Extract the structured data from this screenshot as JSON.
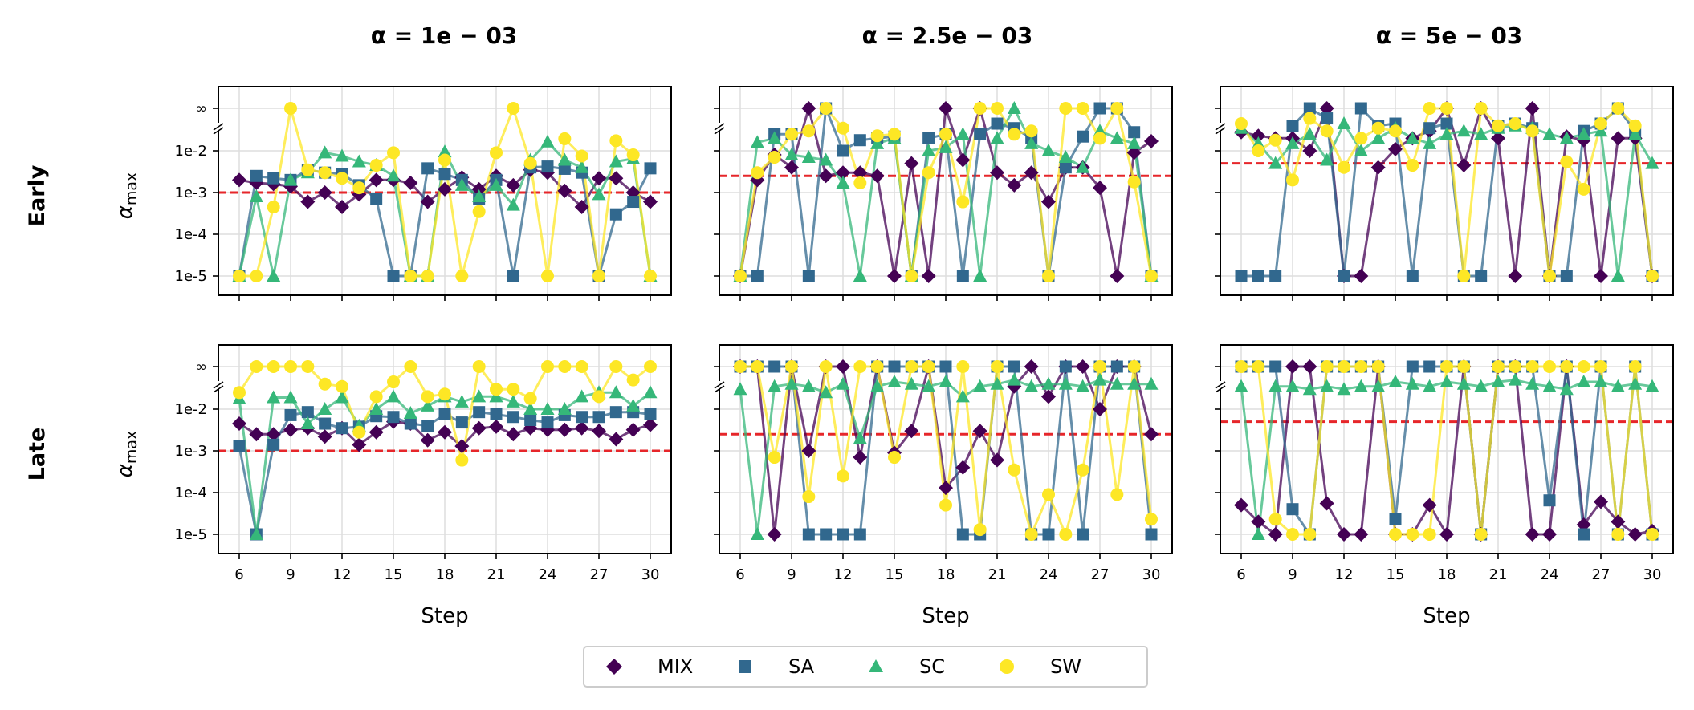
{
  "colors": {
    "MIX": "#440154",
    "SA": "#31688e",
    "SC": "#35b779",
    "SW": "#fde725",
    "threshold": "#e6262a"
  },
  "chart_data": {
    "type": "line",
    "x": [
      6,
      7,
      8,
      9,
      10,
      11,
      12,
      13,
      14,
      15,
      16,
      17,
      18,
      19,
      20,
      21,
      22,
      23,
      24,
      25,
      26,
      27,
      28,
      29,
      30
    ],
    "xticks": [
      "6",
      "9",
      "12",
      "15",
      "18",
      "21",
      "24",
      "27",
      "30"
    ],
    "xtick_values": [
      6,
      9,
      12,
      15,
      18,
      21,
      24,
      27,
      30
    ],
    "xlabel": "Step",
    "ylabel": "α_max",
    "ylabel_main": "α",
    "ylabel_sub": "max",
    "yticks": [
      "1e-5",
      "1e-4",
      "1e-3",
      "1e-2",
      "∞"
    ],
    "yscale": "log10 with broken axis; ∞ = no limit",
    "row_titles": [
      "Early",
      "Late"
    ],
    "col_titles": [
      "α = 1e − 03",
      "α = 2.5e − 03",
      "α = 5e − 03"
    ],
    "alpha_thresholds": [
      0.001,
      0.0025,
      0.005
    ],
    "legend": {
      "entries": [
        "MIX",
        "SA",
        "SC",
        "SW"
      ],
      "location": "lower center"
    },
    "panels": [
      {
        "row": "Early",
        "alpha": 0.001,
        "series": {
          "MIX": [
            0.002,
            0.0017,
            0.0016,
            0.0014,
            0.0006,
            0.001,
            0.00045,
            0.0009,
            0.002,
            0.002,
            0.0017,
            0.0006,
            0.0012,
            0.0023,
            0.0012,
            0.0025,
            0.0015,
            0.0035,
            0.003,
            0.0011,
            0.00045,
            0.0022,
            0.0022,
            0.001,
            0.0006
          ],
          "SA": [
            1e-05,
            0.0025,
            0.0022,
            0.002,
            0.0035,
            0.003,
            0.0028,
            0.0015,
            0.0007,
            1e-05,
            1e-05,
            0.0038,
            0.0028,
            0.002,
            0.0007,
            0.002,
            1e-05,
            0.004,
            0.0042,
            0.0037,
            0.003,
            1e-05,
            0.0003,
            0.0006,
            0.0038
          ],
          "SC": [
            1e-05,
            0.0008,
            1e-05,
            0.002,
            0.003,
            0.009,
            0.0075,
            0.0055,
            0.0045,
            0.0025,
            1e-05,
            1e-05,
            0.0095,
            0.0015,
            0.0008,
            0.0015,
            0.0005,
            0.006,
            0.0165,
            0.006,
            0.004,
            0.0009,
            0.0055,
            0.0065,
            1e-05
          ],
          "SW": [
            1e-05,
            1e-05,
            0.00045,
            "inf",
            0.0035,
            0.003,
            0.0022,
            0.0013,
            0.0045,
            0.009,
            1e-05,
            1e-05,
            0.006,
            1e-05,
            0.00035,
            0.009,
            "inf",
            0.005,
            1e-05,
            0.0195,
            0.0075,
            1e-05,
            0.0175,
            0.008,
            1e-05
          ]
        }
      },
      {
        "row": "Early",
        "alpha": 0.0025,
        "series": {
          "MIX": [
            1e-05,
            0.002,
            0.008,
            0.004,
            "inf",
            0.0025,
            0.003,
            0.003,
            0.0025,
            1e-05,
            0.005,
            1e-05,
            "inf",
            0.006,
            "inf",
            0.003,
            0.0015,
            0.003,
            0.0006,
            0.004,
            0.004,
            0.0013,
            1e-05,
            0.009,
            0.017
          ],
          "SA": [
            1e-05,
            1e-05,
            0.025,
            0.025,
            1e-05,
            "inf",
            0.01,
            0.018,
            0.02,
            0.022,
            1e-05,
            0.02,
            0.025,
            1e-05,
            0.025,
            0.045,
            0.035,
            0.02,
            1e-05,
            0.004,
            0.022,
            "inf",
            "inf",
            0.028,
            1e-05
          ],
          "SC": [
            1e-05,
            0.016,
            0.02,
            0.008,
            0.007,
            0.006,
            0.0017,
            1e-05,
            0.015,
            0.02,
            1e-05,
            0.01,
            0.012,
            0.025,
            1e-05,
            0.02,
            "inf",
            0.015,
            0.01,
            0.007,
            0.004,
            0.03,
            0.02,
            0.015,
            1e-05
          ],
          "SW": [
            1e-05,
            0.003,
            0.007,
            0.025,
            0.03,
            "inf",
            0.035,
            0.0017,
            0.023,
            0.025,
            1e-05,
            0.003,
            0.025,
            0.0006,
            "inf",
            "inf",
            0.025,
            0.03,
            1e-05,
            "inf",
            "inf",
            0.02,
            "inf",
            0.0018,
            1e-05
          ]
        }
      },
      {
        "row": "Early",
        "alpha": 0.005,
        "series": {
          "MIX": [
            0.028,
            0.023,
            0.02,
            0.02,
            0.01,
            "inf",
            1e-05,
            1e-05,
            0.004,
            0.011,
            0.02,
            0.03,
            "inf",
            0.0045,
            "inf",
            0.02,
            1e-05,
            "inf",
            1e-05,
            0.022,
            0.018,
            1e-05,
            0.02,
            0.02,
            1e-05
          ],
          "SA": [
            1e-05,
            1e-05,
            1e-05,
            0.04,
            "inf",
            0.06,
            1e-05,
            "inf",
            0.04,
            0.045,
            1e-05,
            0.035,
            0.045,
            1e-05,
            1e-05,
            0.04,
            0.045,
            0.035,
            1e-05,
            1e-05,
            0.03,
            0.045,
            "inf",
            0.03,
            1e-05
          ],
          "SC": [
            0.035,
            0.015,
            0.005,
            0.015,
            0.025,
            0.006,
            0.045,
            0.01,
            0.02,
            0.035,
            0.02,
            0.015,
            0.025,
            0.03,
            0.025,
            0.035,
            0.04,
            0.035,
            0.025,
            0.02,
            0.025,
            0.03,
            1e-05,
            0.025,
            0.005
          ],
          "SW": [
            0.045,
            0.01,
            0.018,
            0.002,
            0.06,
            0.03,
            0.004,
            0.02,
            0.035,
            0.03,
            0.0045,
            "inf",
            "inf",
            1e-05,
            "inf",
            0.04,
            0.045,
            0.03,
            1e-05,
            0.0055,
            0.0012,
            0.045,
            "inf",
            0.04,
            1e-05
          ]
        }
      },
      {
        "row": "Late",
        "alpha": 0.001,
        "series": {
          "MIX": [
            0.0045,
            0.0025,
            0.0025,
            0.0032,
            0.0035,
            0.0022,
            0.0035,
            0.0014,
            0.0028,
            0.005,
            0.0045,
            0.0018,
            0.0028,
            0.0013,
            0.0035,
            0.0038,
            0.0025,
            0.0035,
            0.0032,
            0.0032,
            0.0035,
            0.003,
            0.0019,
            0.0032,
            0.0042
          ],
          "SA": [
            0.0013,
            1e-05,
            0.0014,
            0.0072,
            0.0085,
            0.0045,
            0.0035,
            0.0038,
            0.0068,
            0.0065,
            0.0045,
            0.004,
            0.0075,
            0.0048,
            0.0085,
            0.0075,
            0.0065,
            0.0055,
            0.0048,
            0.0072,
            0.0065,
            0.0065,
            0.0085,
            0.0085,
            0.0075
          ],
          "SC": [
            0.018,
            1e-05,
            0.019,
            0.019,
            0.0045,
            0.01,
            0.019,
            0.004,
            0.01,
            0.02,
            0.008,
            0.012,
            0.02,
            0.015,
            0.02,
            0.02,
            0.015,
            0.01,
            0.01,
            0.01,
            0.02,
            0.025,
            0.025,
            0.012,
            0.025
          ],
          "SW": [
            0.025,
            "inf",
            "inf",
            "inf",
            "inf",
            0.04,
            0.035,
            0.0028,
            0.02,
            0.045,
            "inf",
            0.02,
            0.023,
            0.0006,
            "inf",
            0.03,
            0.03,
            0.018,
            "inf",
            "inf",
            "inf",
            0.02,
            "inf",
            0.05,
            "inf"
          ]
        }
      },
      {
        "row": "Late",
        "alpha": 0.0025,
        "series": {
          "MIX": [
            "inf",
            "inf",
            1e-05,
            "inf",
            0.001,
            "inf",
            "inf",
            0.0007,
            "inf",
            0.0009,
            0.003,
            "inf",
            0.00013,
            0.0004,
            0.003,
            0.0006,
            0.035,
            "inf",
            0.02,
            "inf",
            "inf",
            0.01,
            "inf",
            "inf",
            0.0025
          ],
          "SA": [
            "inf",
            "inf",
            "inf",
            "inf",
            1e-05,
            1e-05,
            1e-05,
            1e-05,
            "inf",
            "inf",
            "inf",
            "inf",
            "inf",
            1e-05,
            1e-05,
            "inf",
            "inf",
            1e-05,
            1e-05,
            "inf",
            1e-05,
            "inf",
            "inf",
            "inf",
            1e-05
          ],
          "SC": [
            0.03,
            1e-05,
            0.035,
            0.04,
            0.035,
            0.025,
            0.04,
            0.002,
            0.035,
            0.045,
            0.04,
            0.035,
            0.045,
            0.02,
            0.035,
            0.04,
            0.05,
            0.035,
            0.04,
            0.04,
            0.035,
            0.05,
            0.04,
            0.04,
            0.04
          ],
          "SW": [
            "inf",
            "inf",
            0.0007,
            "inf",
            8e-05,
            "inf",
            0.00025,
            "inf",
            "inf",
            0.0007,
            "inf",
            "inf",
            5e-05,
            "inf",
            1.3e-05,
            "inf",
            0.00035,
            1e-05,
            9e-05,
            1e-05,
            0.00035,
            "inf",
            9e-05,
            "inf",
            2.3e-05
          ]
        }
      },
      {
        "row": "Late",
        "alpha": 0.005,
        "series": {
          "MIX": [
            5e-05,
            2e-05,
            1e-05,
            "inf",
            "inf",
            5.5e-05,
            1e-05,
            1e-05,
            "inf",
            1e-05,
            1e-05,
            5e-05,
            1e-05,
            "inf",
            1e-05,
            "inf",
            "inf",
            1e-05,
            1e-05,
            "inf",
            1.7e-05,
            6e-05,
            2e-05,
            1e-05,
            1.2e-05
          ],
          "SA": [
            "inf",
            "inf",
            "inf",
            4e-05,
            1e-05,
            "inf",
            "inf",
            "inf",
            "inf",
            2.3e-05,
            "inf",
            "inf",
            "inf",
            "inf",
            1e-05,
            "inf",
            "inf",
            "inf",
            6.5e-05,
            "inf",
            1e-05,
            "inf",
            1e-05,
            "inf",
            1e-05
          ],
          "SC": [
            0.035,
            1e-05,
            0.035,
            0.035,
            0.03,
            0.035,
            0.03,
            0.035,
            0.035,
            0.045,
            0.04,
            0.035,
            0.045,
            0.04,
            0.035,
            0.045,
            0.05,
            0.04,
            0.035,
            0.03,
            0.045,
            0.045,
            0.035,
            0.04,
            0.035
          ],
          "SW": [
            "inf",
            "inf",
            2.3e-05,
            1e-05,
            1e-05,
            "inf",
            "inf",
            "inf",
            "inf",
            1e-05,
            1e-05,
            1e-05,
            "inf",
            "inf",
            1e-05,
            "inf",
            "inf",
            "inf",
            "inf",
            "inf",
            "inf",
            "inf",
            1e-05,
            "inf",
            1e-05
          ]
        }
      }
    ]
  }
}
